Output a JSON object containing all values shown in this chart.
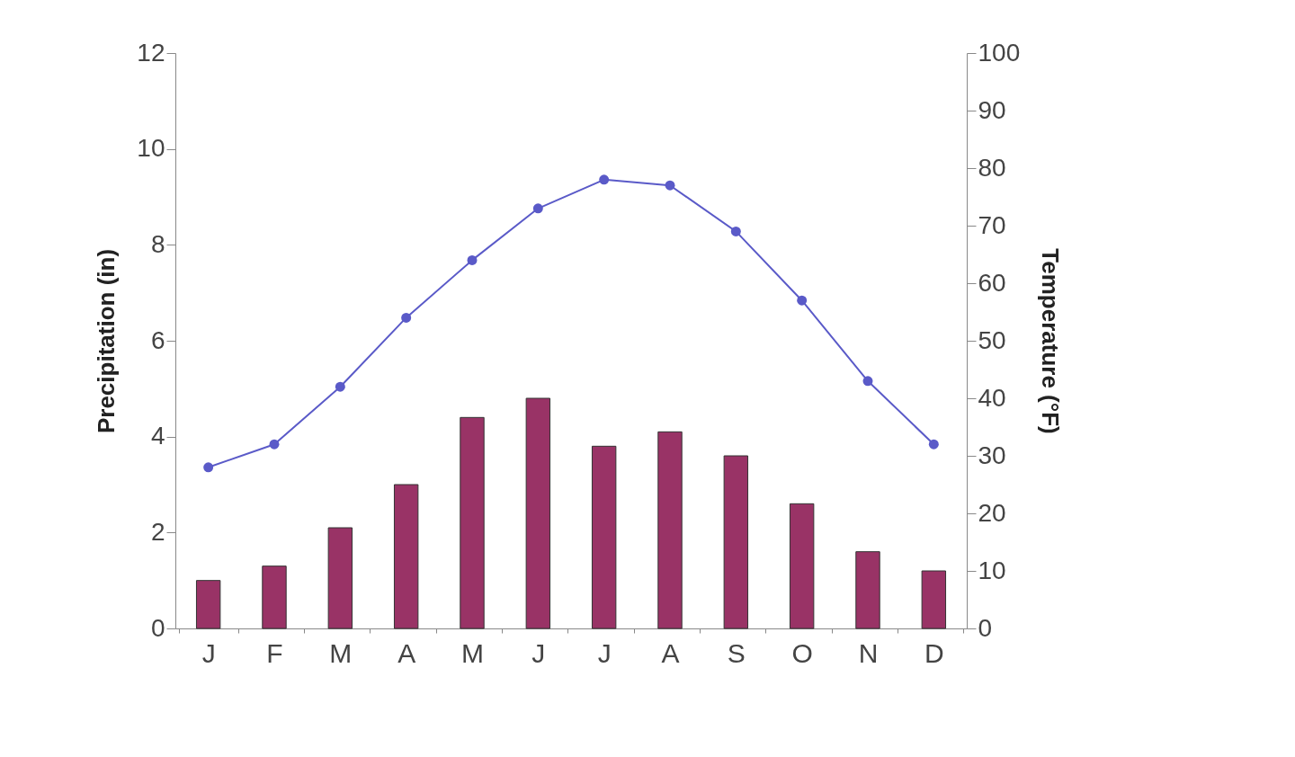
{
  "chart_data": {
    "type": "bar",
    "categories": [
      "J",
      "F",
      "M",
      "A",
      "M",
      "J",
      "J",
      "A",
      "S",
      "O",
      "N",
      "D"
    ],
    "ylabel": "Precipitation (in)",
    "y2label": "Temperature (°F)",
    "ylim": [
      0,
      12
    ],
    "yticks": [
      0,
      2,
      4,
      6,
      8,
      10,
      12
    ],
    "y2lim": [
      0,
      100
    ],
    "y2ticks": [
      0,
      10,
      20,
      30,
      40,
      50,
      60,
      70,
      80,
      90,
      100
    ],
    "grid": false,
    "marker": "circle",
    "line_style": "solid",
    "series": [
      {
        "color": "#993366",
        "values": [
          1.0,
          1.3,
          2.1,
          3.0,
          4.4,
          4.8,
          3.8,
          4.1,
          3.6,
          2.6,
          1.6,
          1.2
        ]
      },
      {
        "type": "line",
        "axis": "y2",
        "color": "#5a5ac8",
        "values": [
          28,
          32,
          42,
          54,
          64,
          73,
          78,
          77,
          69,
          57,
          43,
          32
        ]
      }
    ]
  }
}
